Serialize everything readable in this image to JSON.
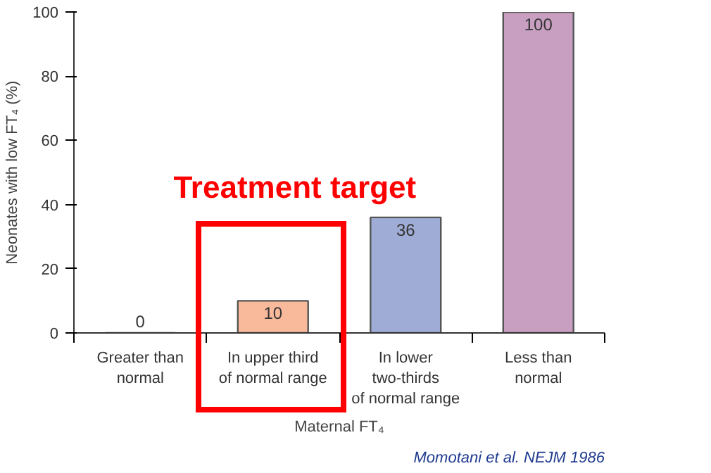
{
  "chart_data": {
    "type": "bar",
    "categories": [
      "Greater than\nnormal",
      "In upper third\nof normal range",
      "In lower\ntwo-thirds\nof normal range",
      "Less than\nnormal"
    ],
    "values": [
      0,
      10,
      36,
      100
    ],
    "colors": [
      "#555555",
      "#f9b99b",
      "#9fadd6",
      "#c89ec1"
    ],
    "data_labels": true,
    "xlabel": "Maternal FT₄",
    "ylabel": "Neonates with low FT₄ (%)",
    "ylim": [
      0,
      100
    ],
    "yticks": [
      0,
      20,
      40,
      60,
      80,
      100
    ],
    "grid": false,
    "annotations": [
      "Treatment target",
      "Momotani et al. NEJM 1986"
    ]
  }
}
